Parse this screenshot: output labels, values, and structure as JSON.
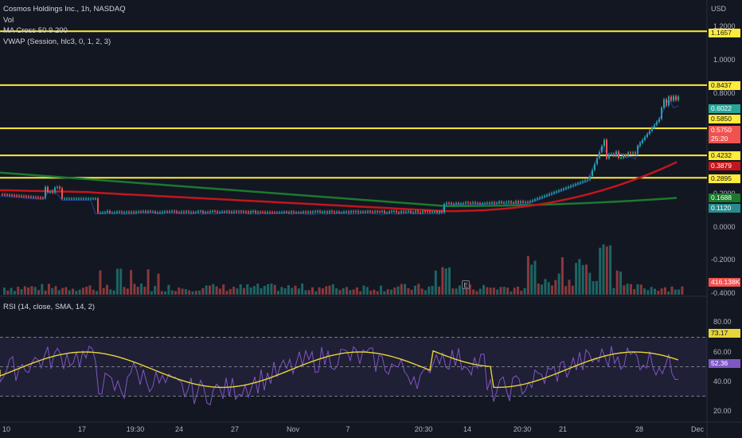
{
  "header": {
    "symbol_line": "Cosmos Holdings Inc., 1h, NASDAQ",
    "vol_label": "Vol",
    "ma_label": "MA Cross 50 9 200",
    "vwap_label": "VWAP (Session, hlc3, 0, 1, 2, 3)",
    "currency": "USD"
  },
  "price_axis": {
    "ticks": [
      "1.2000",
      "1.0000",
      "0.8000",
      "0.2000",
      "0.0000",
      "-0.2000",
      "-0.4000"
    ]
  },
  "horizontal_levels": [
    {
      "value": 1.1657,
      "label": "1.1657"
    },
    {
      "value": 0.8437,
      "label": "0.8437"
    },
    {
      "value": 0.585,
      "label": "0.5850"
    },
    {
      "value": 0.4232,
      "label": "0.4232"
    },
    {
      "value": 0.2895,
      "label": "0.2895"
    }
  ],
  "price_tags": {
    "vwap": "0.6022",
    "last_price": "0.5750",
    "countdown": "25:20",
    "ema_red": "0.3879",
    "ma_green": "0.1688",
    "ma_teal": "0.1120",
    "volume": "416.138K"
  },
  "rsi": {
    "label": "RSI (14, close, SMA, 14, 2)",
    "ticks": [
      "80.00",
      "60.00",
      "40.00",
      "20.00"
    ],
    "value": "73.17",
    "sma_value": "52.36"
  },
  "time_axis": {
    "labels": [
      "10",
      "17",
      "19:30",
      "24",
      "27",
      "Nov",
      "7",
      "20:30",
      "14",
      "20:30",
      "21",
      "28",
      "Dec"
    ]
  },
  "earnings_marker": "E",
  "colors": {
    "background": "#131722",
    "level_line": "#ffeb3b",
    "up": "#26a69a",
    "down": "#ef5350",
    "ema_red": "#c2161c",
    "ma_green": "#1b7a2d",
    "rsi_line": "#7e57c2",
    "rsi_sma": "#e6d43a"
  }
}
